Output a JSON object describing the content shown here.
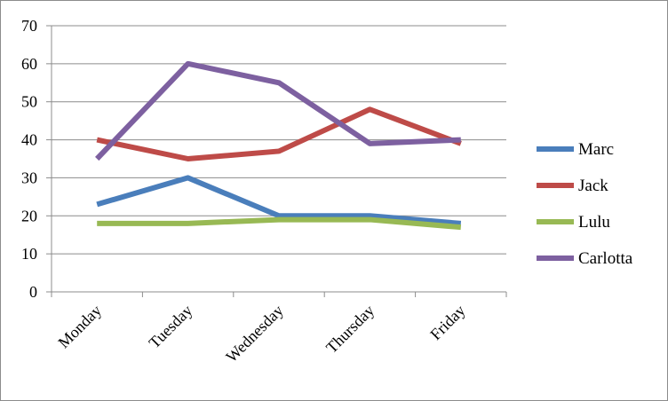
{
  "chart_data": {
    "type": "line",
    "title": "",
    "xlabel": "",
    "ylabel": "",
    "categories": [
      "Monday",
      "Tuesday",
      "Wednesday",
      "Thursday",
      "Friday"
    ],
    "ylim": [
      0,
      70
    ],
    "yticks": [
      0,
      10,
      20,
      30,
      40,
      50,
      60,
      70
    ],
    "grid": true,
    "legend": "right",
    "series": [
      {
        "name": "Marc",
        "color": "#4a7ebb",
        "values": [
          23,
          30,
          20,
          20,
          18
        ]
      },
      {
        "name": "Jack",
        "color": "#be4b48",
        "values": [
          40,
          35,
          37,
          48,
          39
        ]
      },
      {
        "name": "Lulu",
        "color": "#98b954",
        "values": [
          18,
          18,
          19,
          19,
          17
        ]
      },
      {
        "name": "Carlotta",
        "color": "#7d60a0",
        "values": [
          35,
          60,
          55,
          39,
          40
        ]
      }
    ]
  }
}
